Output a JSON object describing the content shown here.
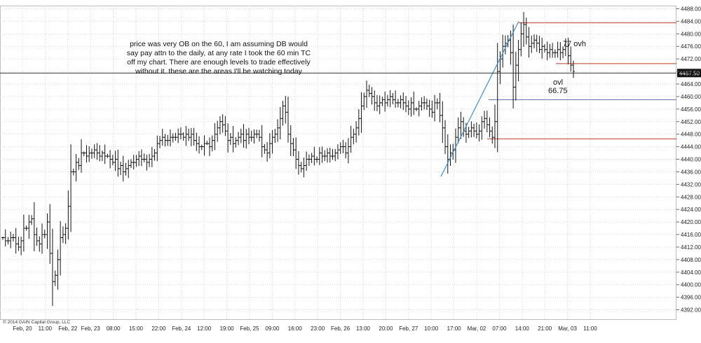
{
  "chart_data": {
    "type": "ohlc",
    "y_axis": {
      "side": "right",
      "ylim": [
        4389.0,
        4489.0
      ],
      "ticks": [
        4392,
        4396,
        4400,
        4404,
        4408,
        4412,
        4416,
        4420,
        4424,
        4428,
        4432,
        4436,
        4440,
        4444,
        4448,
        4452,
        4456,
        4460,
        4464,
        4468,
        4472,
        4476,
        4480,
        4484,
        4488
      ],
      "tick_labels": [
        "4392.00",
        "4396.00",
        "4400.00",
        "4404.00",
        "4408.00",
        "4412.00",
        "4416.00",
        "4420.00",
        "4424.00",
        "4428.00",
        "4432.00",
        "4436.00",
        "4440.00",
        "4444.00",
        "4448.00",
        "4452.00",
        "4456.00",
        "4460.00",
        "4464.00",
        "4468.00",
        "4472.00",
        "4476.00",
        "4480.00",
        "4484.00",
        "4488.00"
      ]
    },
    "x_axis": {
      "labels": [
        "Feb, 20",
        "11:00",
        "Feb, 22",
        "Feb, 23",
        "08:00",
        "15:00",
        "22:00",
        "Feb, 24",
        "12:00",
        "19:00",
        "Feb, 25",
        "09:00",
        "16:00",
        "23:00",
        "Feb, 26",
        "13:00",
        "20:00",
        "Feb, 27",
        "10:00",
        "17:00",
        "Mar, 02",
        "07:00",
        "14:00",
        "21:00",
        "Mar, 03",
        "11:00"
      ]
    },
    "current_price_label": "4467.50",
    "current_price": 4467.5,
    "copyright": "© 2014 GAIN Capital Group, LLC",
    "annotation_note": "price was very OB on the 60, I am assuming DB would say pay attn to the daily, at any rate I took the 60 min TC off my chart. There are enough levels to trade effectively without it. these are the areas I'll be watching today",
    "annotation_note_lines": [
      "price was very OB on the 60, I am assuming DB would",
      "say pay attn to the daily, at any rate I took the 60 min TC",
      "off my chart. There are enough levels to trade effectively",
      "without it. these are the areas I'll be watching today"
    ],
    "annotations": {
      "ovh_label": "77 ovh",
      "ovl_label_1": "ovl",
      "ovl_label_2": "66.75"
    },
    "levels": [
      {
        "name": "high-level",
        "y": 4483.5,
        "color": "#c0392b"
      },
      {
        "name": "ovh-level",
        "y": 4470.5,
        "color": "#c0392b"
      },
      {
        "name": "ovl-level",
        "y": 4459.0,
        "color": "#5b6fa8"
      },
      {
        "name": "low-level",
        "y": 4446.5,
        "color": "#c0392b"
      }
    ],
    "trendline": {
      "from": 4434.5,
      "to": 4484.0,
      "color": "#3a8fd6"
    },
    "closes": [
      4415,
      4414,
      4414,
      4415,
      4415,
      4413,
      4412,
      4414,
      4418,
      4418,
      4420,
      4421,
      4416,
      4414,
      4413,
      4416,
      4416,
      4420,
      4410,
      4401,
      4403,
      4408,
      4415,
      4416,
      4418,
      4425,
      4436,
      4436,
      4439,
      4438,
      4442,
      4442,
      4441,
      4442,
      4442,
      4443,
      4442,
      4441,
      4442,
      4441,
      4441,
      4440,
      4439,
      4440,
      4437,
      4438,
      4436,
      4437,
      4438,
      4439,
      4439,
      4440,
      4441,
      4440,
      4440,
      4439,
      4440,
      4441,
      4442,
      4445,
      4446,
      4447,
      4446,
      4446,
      4447,
      4447,
      4447,
      4448,
      4448,
      4447,
      4448,
      4447,
      4448,
      4446,
      4445,
      4444,
      4444,
      4445,
      4445,
      4444,
      4446,
      4448,
      4450,
      4452,
      4451,
      4449,
      4446,
      4447,
      4445,
      4446,
      4447,
      4448,
      4446,
      4448,
      4447,
      4447,
      4448,
      4448,
      4447,
      4444,
      4443,
      4442,
      4445,
      4447,
      4448,
      4450,
      4453,
      4457,
      4455,
      4448,
      4445,
      4443,
      4440,
      4438,
      4437,
      4438,
      4440,
      4440,
      4441,
      4440,
      4440,
      4442,
      4441,
      4441,
      4442,
      4441,
      4441,
      4442,
      4443,
      4444,
      4444,
      4442,
      4444,
      4447,
      4448,
      4450,
      4453,
      4457,
      4460,
      4462,
      4461,
      4460,
      4458,
      4457,
      4458,
      4459,
      4458,
      4459,
      4460,
      4459,
      4458,
      4458,
      4459,
      4458,
      4457,
      4456,
      4458,
      4456,
      4456,
      4457,
      4458,
      4458,
      4457,
      4456,
      4455,
      4458,
      4458,
      4454,
      4450,
      4444,
      4440,
      4442,
      4443,
      4447,
      4450,
      4452,
      4449,
      4448,
      4449,
      4450,
      4449,
      4448,
      4449,
      4452,
      4453,
      4451,
      4449,
      4447,
      4452,
      4468,
      4472,
      4476,
      4477,
      4478,
      4474,
      4463,
      4470,
      4475,
      4480,
      4483,
      4479,
      4476,
      4477,
      4478,
      4477,
      4475,
      4476,
      4475,
      4474,
      4475,
      4474,
      4474,
      4475,
      4474,
      4475,
      4476,
      4473,
      4470,
      4468
    ]
  }
}
